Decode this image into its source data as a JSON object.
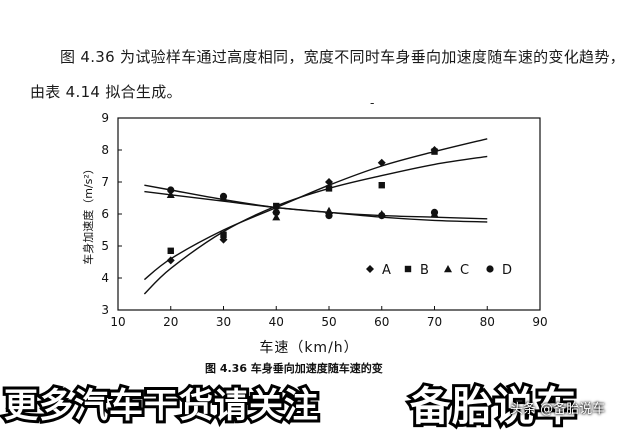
{
  "intro": {
    "line1": "图 4.36 为试验样车通过高度相同，宽度不同时车身垂向加速度随车速的变化趋势，",
    "line2": "由表 4.14 拟合生成。"
  },
  "caption": "图 4.36   车身垂向加速度随车速的变",
  "banner": {
    "left_text": "更多汽车干货请关注",
    "right_text": "备胎说车",
    "watermark": "头条 @备胎说车"
  },
  "chart_data": {
    "type": "scatter",
    "xlabel": "车速（km/h）",
    "ylabel": "车身加速度（m/s²）",
    "xlim": [
      10,
      90
    ],
    "ylim": [
      3,
      9
    ],
    "xticks": [
      10,
      20,
      30,
      40,
      50,
      60,
      70,
      80,
      90
    ],
    "yticks": [
      3,
      4,
      5,
      6,
      7,
      8,
      9
    ],
    "grid": false,
    "legend_position": "lower-right",
    "series": [
      {
        "name": "A",
        "marker": "diamond",
        "x": [
          20,
          30,
          40,
          50,
          60,
          70
        ],
        "y": [
          4.55,
          5.2,
          6.05,
          7.0,
          7.6,
          8.0
        ]
      },
      {
        "name": "B",
        "marker": "square",
        "x": [
          20,
          30,
          40,
          50,
          60,
          70
        ],
        "y": [
          4.85,
          5.35,
          6.25,
          6.8,
          6.9,
          7.95
        ]
      },
      {
        "name": "C",
        "marker": "triangle",
        "x": [
          20,
          30,
          40,
          50,
          60,
          70
        ],
        "y": [
          6.6,
          6.5,
          5.9,
          6.1,
          6.0,
          6.0
        ]
      },
      {
        "name": "D",
        "marker": "circle",
        "x": [
          20,
          30,
          40,
          50,
          60,
          70
        ],
        "y": [
          6.75,
          6.55,
          6.05,
          5.95,
          5.95,
          6.05
        ]
      }
    ],
    "fit_curves": [
      {
        "x": [
          15,
          20,
          30,
          40,
          50,
          60,
          70,
          80
        ],
        "y": [
          3.95,
          4.6,
          5.5,
          6.2,
          6.9,
          7.5,
          7.95,
          8.35
        ]
      },
      {
        "x": [
          15,
          20,
          30,
          40,
          50,
          60,
          70,
          80
        ],
        "y": [
          3.5,
          4.3,
          5.45,
          6.25,
          6.8,
          7.2,
          7.55,
          7.8
        ]
      },
      {
        "x": [
          15,
          20,
          30,
          40,
          50,
          60,
          70,
          80
        ],
        "y": [
          6.9,
          6.75,
          6.45,
          6.2,
          6.05,
          5.95,
          5.9,
          5.85
        ]
      },
      {
        "x": [
          15,
          20,
          30,
          40,
          50,
          60,
          70,
          80
        ],
        "y": [
          6.7,
          6.6,
          6.4,
          6.2,
          6.05,
          5.9,
          5.8,
          5.75
        ]
      }
    ]
  }
}
